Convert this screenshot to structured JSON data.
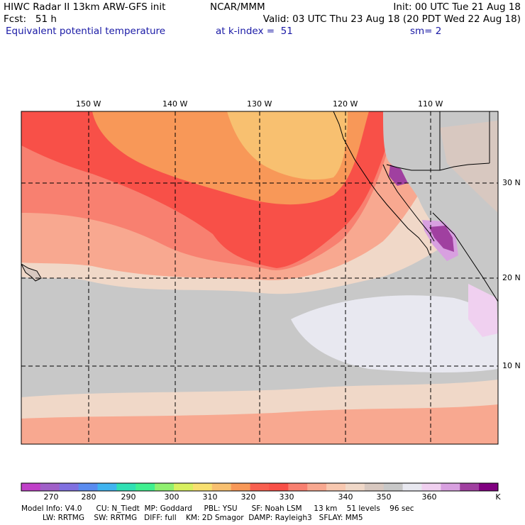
{
  "header": {
    "line1_left": "HIWC Radar II 13km ARW-GFS init",
    "line1_center": "NCAR/MMM",
    "line1_right": "Init: 00 UTC Tue 21 Aug 18",
    "line2_left": "Fcst:   51 h",
    "line2_right": "Valid: 03 UTC Thu 23 Aug 18 (20 PDT Wed 22 Aug 18)",
    "line3_left": "Equivalent potential temperature",
    "line3_center": "at k-index =  51",
    "line3_right": "sm= 2"
  },
  "map": {
    "lon_labels": [
      "150 W",
      "140 W",
      "130 W",
      "120 W",
      "110 W"
    ],
    "lat_labels": [
      "30 N",
      "20 N",
      "10 N"
    ],
    "field": "Equivalent potential temperature"
  },
  "colorbar": {
    "colors": [
      "#c040c8",
      "#a060c8",
      "#8070e0",
      "#5a8cf0",
      "#40b4f0",
      "#30e0b4",
      "#40f090",
      "#90f070",
      "#d8f060",
      "#f8e070",
      "#f8c070",
      "#f89858",
      "#f86050",
      "#f85048",
      "#f88070",
      "#f8a890",
      "#f8c8b0",
      "#f0d8c8",
      "#d8c8c0",
      "#c8c8c8",
      "#e8e8f0",
      "#f0d0f0",
      "#d8a0e0",
      "#a040a0",
      "#800080"
    ],
    "tick_labels": [
      "270",
      "280",
      "290",
      "300",
      "310",
      "320",
      "330",
      "340",
      "350",
      "360",
      "K"
    ]
  },
  "footer": {
    "line1": "Model Info: V4.0      CU: N_Tiedt  MP: Goddard     PBL: YSU      SF: Noah LSM     13 km    51 levels    96 sec",
    "line2": "         LW: RRTMG    SW: RRTMG   DIFF: full    KM: 2D Smagor  DAMP: Rayleigh3   SFLAY: MM5"
  }
}
